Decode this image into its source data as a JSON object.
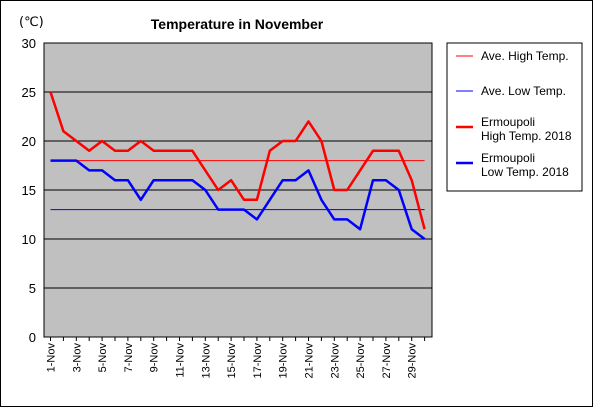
{
  "chart_data": {
    "type": "line",
    "title": "Temperature in November",
    "unit_label": "(℃)",
    "ylim": [
      0,
      30
    ],
    "yticks": [
      0,
      5,
      10,
      15,
      20,
      25,
      30
    ],
    "x": [
      "1-Nov",
      "2-Nov",
      "3-Nov",
      "4-Nov",
      "5-Nov",
      "6-Nov",
      "7-Nov",
      "8-Nov",
      "9-Nov",
      "10-Nov",
      "11-Nov",
      "12-Nov",
      "13-Nov",
      "14-Nov",
      "15-Nov",
      "16-Nov",
      "17-Nov",
      "18-Nov",
      "19-Nov",
      "20-Nov",
      "21-Nov",
      "22-Nov",
      "23-Nov",
      "24-Nov",
      "25-Nov",
      "26-Nov",
      "27-Nov",
      "28-Nov",
      "29-Nov",
      "30-Nov"
    ],
    "x_tick_labels": [
      "1-Nov",
      "3-Nov",
      "5-Nov",
      "7-Nov",
      "9-Nov",
      "11-Nov",
      "13-Nov",
      "15-Nov",
      "17-Nov",
      "19-Nov",
      "21-Nov",
      "23-Nov",
      "25-Nov",
      "27-Nov",
      "29-Nov"
    ],
    "series": [
      {
        "name": "Ave. High Temp.",
        "color": "#ff0000",
        "style": "thin",
        "values": [
          18,
          18,
          18,
          18,
          18,
          18,
          18,
          18,
          18,
          18,
          18,
          18,
          18,
          18,
          18,
          18,
          18,
          18,
          18,
          18,
          18,
          18,
          18,
          18,
          18,
          18,
          18,
          18,
          18,
          18
        ]
      },
      {
        "name": "Ave. Low Temp.",
        "color": "#0000ff",
        "style": "thin",
        "values": [
          13,
          13,
          13,
          13,
          13,
          13,
          13,
          13,
          13,
          13,
          13,
          13,
          13,
          13,
          13,
          13,
          13,
          13,
          13,
          13,
          13,
          13,
          13,
          13,
          13,
          13,
          13,
          13,
          13,
          13
        ]
      },
      {
        "name": "Ermoupoli\nHigh Temp. 2018",
        "color": "#ff0000",
        "style": "thick",
        "values": [
          25,
          21,
          20,
          19,
          20,
          19,
          19,
          20,
          19,
          19,
          19,
          19,
          17,
          15,
          16,
          14,
          14,
          19,
          20,
          20,
          22,
          20,
          15,
          15,
          17,
          19,
          19,
          19,
          16,
          11
        ]
      },
      {
        "name": "Ermoupoli\nLow Temp. 2018",
        "color": "#0000ff",
        "style": "thick",
        "values": [
          18,
          18,
          18,
          17,
          17,
          16,
          16,
          14,
          16,
          16,
          16,
          16,
          15,
          13,
          13,
          13,
          12,
          14,
          16,
          16,
          17,
          14,
          12,
          12,
          11,
          16,
          16,
          15,
          11,
          10
        ]
      }
    ],
    "grid": true,
    "legend_position": "right"
  }
}
